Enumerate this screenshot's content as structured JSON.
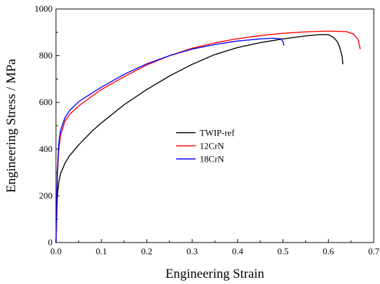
{
  "chart_data": {
    "type": "line",
    "title": "",
    "xlabel": "Engineering Strain",
    "ylabel": "Engineering Stress / MPa",
    "xlim": [
      0,
      0.7
    ],
    "ylim": [
      0,
      1000
    ],
    "xticks": [
      0.0,
      0.1,
      0.2,
      0.3,
      0.4,
      0.5,
      0.6,
      0.7
    ],
    "yticks": [
      0,
      200,
      400,
      600,
      800,
      1000
    ],
    "xtick_labels": [
      "0.0",
      "0.1",
      "0.2",
      "0.3",
      "0.4",
      "0.5",
      "0.6",
      "0.7"
    ],
    "ytick_labels": [
      "0",
      "200",
      "400",
      "600",
      "800",
      "1000"
    ],
    "grid": false,
    "legend_position": "center",
    "series": [
      {
        "name": "TWIP-ref",
        "color": "#000000",
        "x": [
          0,
          0.003,
          0.006,
          0.01,
          0.02,
          0.03,
          0.05,
          0.08,
          0.1,
          0.15,
          0.2,
          0.25,
          0.3,
          0.35,
          0.4,
          0.45,
          0.5,
          0.55,
          0.58,
          0.6,
          0.61,
          0.62,
          0.625,
          0.63,
          0.632
        ],
        "y": [
          0,
          200,
          255,
          295,
          340,
          372,
          418,
          478,
          512,
          590,
          655,
          713,
          763,
          805,
          835,
          856,
          872,
          885,
          890,
          890,
          880,
          860,
          835,
          800,
          765
        ]
      },
      {
        "name": "12CrN",
        "color": "#ff0000",
        "x": [
          0,
          0.003,
          0.006,
          0.01,
          0.02,
          0.03,
          0.05,
          0.08,
          0.1,
          0.15,
          0.2,
          0.25,
          0.3,
          0.35,
          0.4,
          0.45,
          0.5,
          0.55,
          0.6,
          0.64,
          0.655,
          0.665,
          0.67
        ],
        "y": [
          0,
          280,
          390,
          460,
          520,
          548,
          585,
          628,
          655,
          710,
          760,
          800,
          832,
          855,
          873,
          886,
          896,
          902,
          905,
          903,
          893,
          870,
          830
        ]
      },
      {
        "name": "18CrN",
        "color": "#0000ff",
        "x": [
          0,
          0.003,
          0.006,
          0.01,
          0.02,
          0.03,
          0.05,
          0.08,
          0.1,
          0.15,
          0.2,
          0.25,
          0.3,
          0.35,
          0.4,
          0.45,
          0.48,
          0.495,
          0.5,
          0.502
        ],
        "y": [
          0,
          300,
          420,
          480,
          535,
          565,
          603,
          641,
          665,
          720,
          765,
          800,
          828,
          848,
          863,
          872,
          875,
          872,
          860,
          845
        ]
      }
    ]
  }
}
